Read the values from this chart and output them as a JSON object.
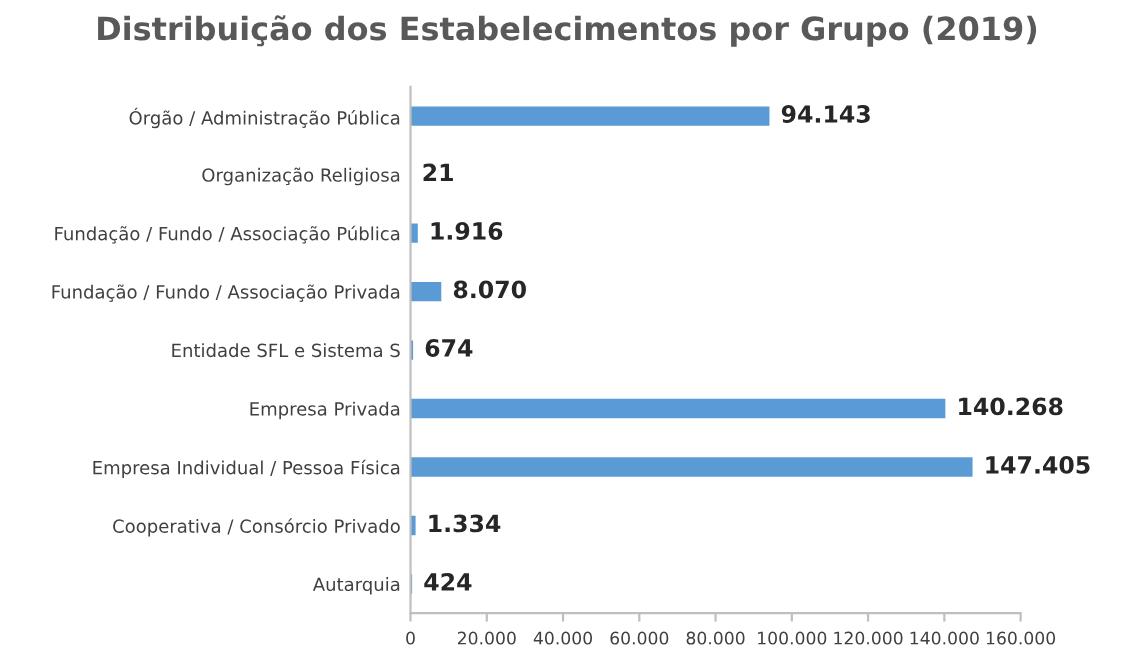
{
  "chart_data": {
    "type": "bar",
    "orientation": "horizontal",
    "title": "Distribuição dos Estabelecimentos por Grupo (2019)",
    "categories": [
      "Órgão / Administração Pública",
      "Organização Religiosa",
      "Fundação / Fundo / Associação Pública",
      "Fundação / Fundo / Associação Privada",
      "Entidade SFL e Sistema S",
      "Empresa Privada",
      "Empresa Individual / Pessoa Física",
      "Cooperativa / Consórcio Privado",
      "Autarquia"
    ],
    "values": [
      94143,
      21,
      1916,
      8070,
      674,
      140268,
      147405,
      1334,
      424
    ],
    "value_labels": [
      "94.143",
      "21",
      "1.916",
      "8.070",
      "674",
      "140.268",
      "147.405",
      "1.334",
      "424"
    ],
    "color": "#5b9bd5",
    "xlim": [
      0,
      160000
    ],
    "xticks": [
      0,
      {
        "value": 20000,
        "label": "20.000"
      },
      {
        "value": 40000,
        "label": "40.000"
      },
      {
        "value": 60000,
        "label": "60.000"
      },
      {
        "value": 80000,
        "label": "80.000"
      },
      {
        "value": 100000,
        "label": "100.000"
      },
      {
        "value": 120000,
        "label": "120.000"
      },
      {
        "value": 140000,
        "label": "140.000"
      },
      {
        "value": 160000,
        "label": "160.000"
      }
    ],
    "grid": false,
    "legend": false
  }
}
